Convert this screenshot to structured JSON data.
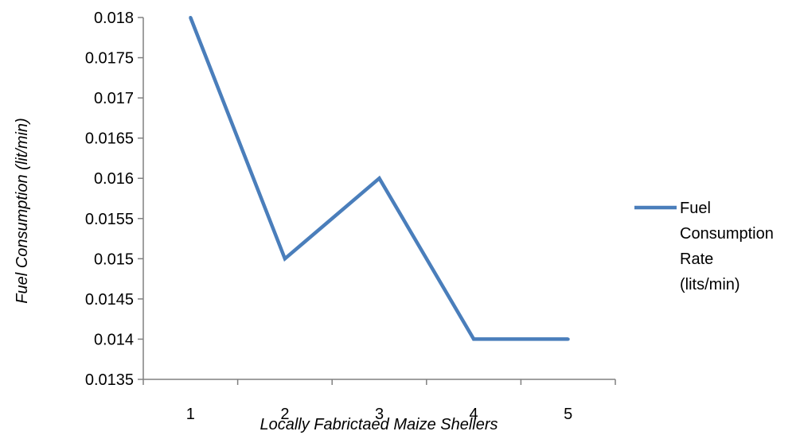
{
  "chart_data": {
    "type": "line",
    "x": [
      1,
      2,
      3,
      4,
      5
    ],
    "series": [
      {
        "name": "Fuel Consumption Rate (lits/min)",
        "legend_lines": [
          "Fuel",
          "Consumption",
          "Rate",
          "(lits/min)"
        ],
        "values": [
          0.018,
          0.015,
          0.016,
          0.014,
          0.014
        ],
        "color": "#4a7ebb"
      }
    ],
    "xlabel": "Locally Fabrictaed Maize Shellers",
    "ylabel": "Fuel Consumption (lit/min)",
    "ylim": [
      0.0135,
      0.018
    ],
    "yticks": [
      0.0135,
      0.014,
      0.0145,
      0.015,
      0.0155,
      0.016,
      0.0165,
      0.017,
      0.0175,
      0.018
    ],
    "ytick_labels": [
      "0.0135",
      "0.014",
      "0.0145",
      "0.015",
      "0.0155",
      "0.016",
      "0.0165",
      "0.017",
      "0.0175",
      "0.018"
    ],
    "xtick_labels": [
      "1",
      "2",
      "3",
      "4",
      "5"
    ],
    "grid": false,
    "legend_position": "right",
    "axis_color": "#808080"
  }
}
